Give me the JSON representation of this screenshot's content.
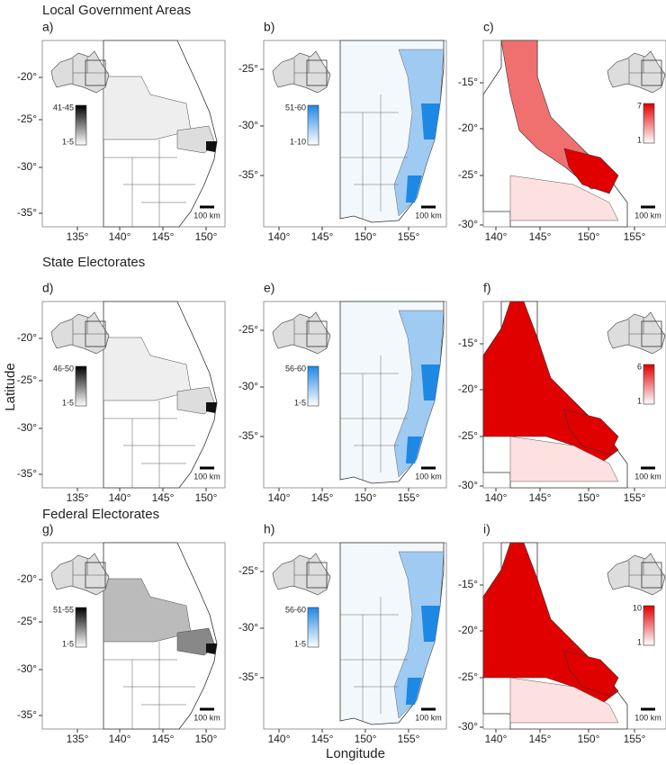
{
  "sections": [
    {
      "title": "Local Government Areas",
      "panels": [
        {
          "label": "a)",
          "xticks": [
            "135°",
            "140°",
            "145°",
            "150°"
          ],
          "yticks": [
            "-20°",
            "-25°",
            "-30°",
            "-35°"
          ],
          "legend": {
            "max": "41-45",
            "min": "1-5"
          },
          "scale": "100 km"
        },
        {
          "label": "b)",
          "xticks": [
            "140°",
            "145°",
            "150°",
            "155°"
          ],
          "yticks": [
            "-25°",
            "-30°",
            "-35°"
          ],
          "legend": {
            "max": "51-60",
            "min": "1-10"
          },
          "scale": "100 km"
        },
        {
          "label": "c)",
          "xticks": [
            "140°",
            "145°",
            "150°",
            "155°"
          ],
          "yticks": [
            "-15°",
            "-20°",
            "-25°",
            "-30°"
          ],
          "legend": {
            "max": "7",
            "min": "1"
          },
          "scale": "100 km"
        }
      ]
    },
    {
      "title": "State Electorates",
      "panels": [
        {
          "label": "d)",
          "xticks": [
            "135°",
            "140°",
            "145°",
            "150°"
          ],
          "yticks": [
            "-20°",
            "-25°",
            "-30°",
            "-35°"
          ],
          "legend": {
            "max": "46-50",
            "min": "1-5"
          },
          "scale": "100 km"
        },
        {
          "label": "e)",
          "xticks": [
            "140°",
            "145°",
            "150°",
            "155°"
          ],
          "yticks": [
            "-25°",
            "-30°",
            "-35°"
          ],
          "legend": {
            "max": "56-60",
            "min": "1-5"
          },
          "scale": "100 km"
        },
        {
          "label": "f)",
          "xticks": [
            "140°",
            "145°",
            "150°",
            "155°"
          ],
          "yticks": [
            "-15°",
            "-20°",
            "-25°",
            "-30°"
          ],
          "legend": {
            "max": "6",
            "min": "1"
          },
          "scale": "100 km"
        }
      ]
    },
    {
      "title": "Federal Electorates",
      "panels": [
        {
          "label": "g)",
          "xticks": [
            "135°",
            "140°",
            "145°",
            "150°"
          ],
          "yticks": [
            "-20°",
            "-25°",
            "-30°",
            "-35°"
          ],
          "legend": {
            "max": "51-55",
            "min": "1-5"
          },
          "scale": "100 km"
        },
        {
          "label": "h)",
          "xticks": [
            "140°",
            "145°",
            "150°",
            "155°"
          ],
          "yticks": [
            "-25°",
            "-30°",
            "-35°"
          ],
          "legend": {
            "max": "56-60",
            "min": "1-5"
          },
          "scale": "100 km"
        },
        {
          "label": "i)",
          "xticks": [
            "140°",
            "145°",
            "150°",
            "155°"
          ],
          "yticks": [
            "-15°",
            "-20°",
            "-25°",
            "-30°"
          ],
          "legend": {
            "max": "10",
            "min": "1"
          },
          "scale": "100 km"
        }
      ]
    }
  ],
  "axis_labels": {
    "y": "Latitude",
    "x": "Longitude"
  }
}
